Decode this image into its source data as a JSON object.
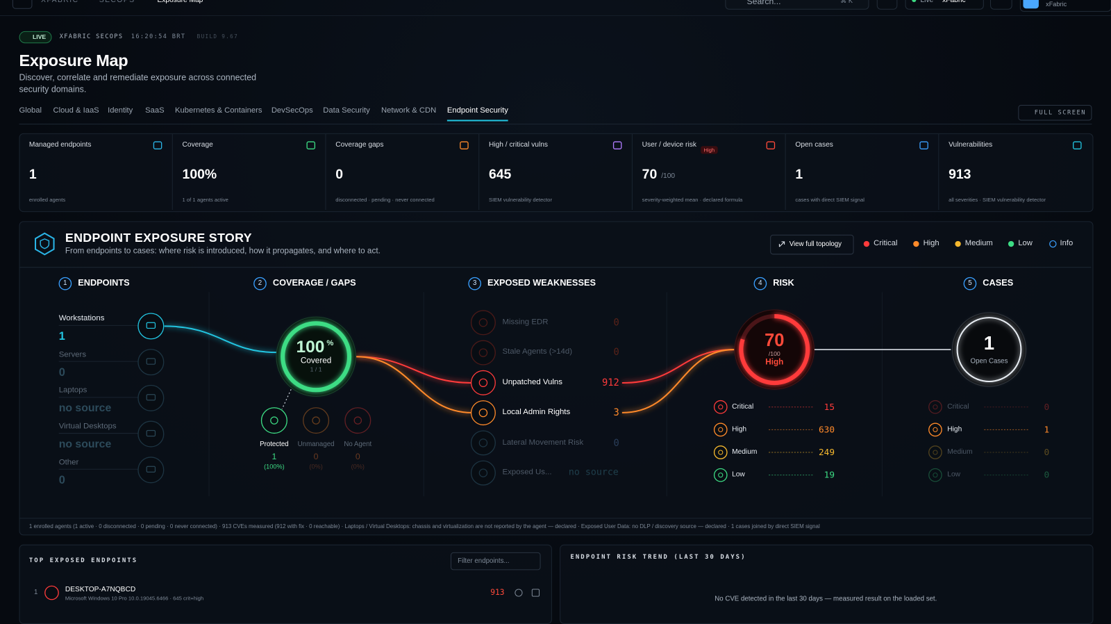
{
  "topbar": {
    "breadcrumb": [
      "XFABRIC",
      "SECOPS",
      "Exposure Map"
    ],
    "search": "Search...",
    "shortcut": "⌘ K",
    "status": "Live",
    "tenant": "xFabric",
    "user": "xFabric"
  },
  "header": {
    "badge": "LIVE",
    "org": "XFABRIC SECOPS",
    "time": "16:20:54 BRT",
    "build": "BUILD 9.67",
    "title": "Exposure Map",
    "subtitle": "Discover, correlate and remediate exposure across connected security domains.",
    "fullscreen": "FULL SCREEN"
  },
  "tabs": {
    "items": [
      "Global",
      "Cloud & IaaS",
      "Identity",
      "SaaS",
      "Kubernetes & Containers",
      "DevSecOps",
      "Data Security",
      "Network & CDN",
      "Endpoint Security"
    ],
    "active": 8
  },
  "kpis": [
    {
      "label": "Managed endpoints",
      "value": "1",
      "note": "enrolled agents",
      "color": "#2ab4e6"
    },
    {
      "label": "Coverage",
      "value": "100%",
      "note": "1 of 1 agents active",
      "color": "#3ddc84"
    },
    {
      "label": "Coverage gaps",
      "value": "0",
      "note": "disconnected · pending · never connected",
      "color": "#ff8a2a"
    },
    {
      "label": "High / critical vulns",
      "value": "645",
      "note": "SIEM vulnerability detector",
      "color": "#b07cff"
    },
    {
      "label": "User / device risk",
      "badge": "High",
      "value": "70",
      "unit": "/100",
      "note": "severity-weighted mean · declared formula",
      "color": "#ff4a3a"
    },
    {
      "label": "Open cases",
      "value": "1",
      "note": "cases with direct SIEM signal",
      "color": "#3aa0ff"
    },
    {
      "label": "Vulnerabilities",
      "value": "913",
      "note": "all severities · SIEM vulnerability detector",
      "color": "#22c4e0"
    }
  ],
  "story": {
    "title": "ENDPOINT EXPOSURE STORY",
    "subtitle": "From endpoints to cases: where risk is introduced, how it propagates, and where to act.",
    "button": "View full topology",
    "legend": [
      {
        "name": "Critical",
        "color": "#ff3b3b"
      },
      {
        "name": "High",
        "color": "#ff8a2a"
      },
      {
        "name": "Medium",
        "color": "#f5b82e"
      },
      {
        "name": "Low",
        "color": "#3ddc84"
      },
      {
        "name": "Info",
        "color": "#3aa0ff"
      }
    ],
    "steps": [
      {
        "n": "1",
        "name": "ENDPOINTS"
      },
      {
        "n": "2",
        "name": "COVERAGE / GAPS"
      },
      {
        "n": "3",
        "name": "EXPOSED WEAKNESSES"
      },
      {
        "n": "4",
        "name": "RISK"
      },
      {
        "n": "5",
        "name": "CASES"
      }
    ],
    "footnote": "1 enrolled agents (1 active · 0 disconnected · 0 pending · 0 never connected) · 913 CVEs measured (912 with fix · 0 reachable) · Laptops / Virtual Desktops: chassis and virtualization are not reported by the agent — declared · Exposed User Data: no DLP / discovery source — declared · 1 cases joined by direct SIEM signal"
  },
  "endpoints": [
    {
      "name": "Workstations",
      "value": "1"
    },
    {
      "name": "Servers",
      "value": "0"
    },
    {
      "name": "Laptops",
      "value": "no source"
    },
    {
      "name": "Virtual Desktops",
      "value": "no source"
    },
    {
      "name": "Other",
      "value": "0"
    }
  ],
  "coverage": {
    "value": "100",
    "unit": "%",
    "label": "Covered",
    "ratio": "1 / 1",
    "states": [
      {
        "name": "Protected",
        "value": "1",
        "pct": "(100%)"
      },
      {
        "name": "Unmanaged",
        "value": "0",
        "pct": "(0%)"
      },
      {
        "name": "No Agent",
        "value": "0",
        "pct": "(0%)"
      }
    ]
  },
  "weaknesses": [
    {
      "name": "Missing EDR",
      "value": "0"
    },
    {
      "name": "Stale Agents (>14d)",
      "value": "0"
    },
    {
      "name": "Unpatched Vulns",
      "value": "912"
    },
    {
      "name": "Local Admin Rights",
      "value": "3"
    },
    {
      "name": "Lateral Movement Risk",
      "value": "0"
    },
    {
      "name": "Exposed Us...",
      "value": "no source"
    }
  ],
  "risk": {
    "score": "70",
    "max": "/100",
    "level": "High",
    "breakdown": [
      {
        "name": "Critical",
        "value": "15"
      },
      {
        "name": "High",
        "value": "630"
      },
      {
        "name": "Medium",
        "value": "249"
      },
      {
        "name": "Low",
        "value": "19"
      }
    ]
  },
  "cases": {
    "count": "1",
    "label": "Open Cases",
    "breakdown": [
      {
        "name": "Critical",
        "value": "0"
      },
      {
        "name": "High",
        "value": "1"
      },
      {
        "name": "Medium",
        "value": "0"
      },
      {
        "name": "Low",
        "value": "0"
      }
    ]
  },
  "bottom": {
    "endpoints_title": "TOP EXPOSED ENDPOINTS",
    "filter": "Filter endpoints...",
    "rows": [
      {
        "rank": "1",
        "host": "DESKTOP-A7NQBCD",
        "os": "Microsoft Windows 10 Pro 10.0.19045.6466 · 645 crit+high",
        "score": "913"
      }
    ],
    "trend_title": "ENDPOINT RISK TREND (LAST 30 DAYS)",
    "trend_empty": "No CVE detected in the last 30 days — measured result on the loaded set."
  }
}
